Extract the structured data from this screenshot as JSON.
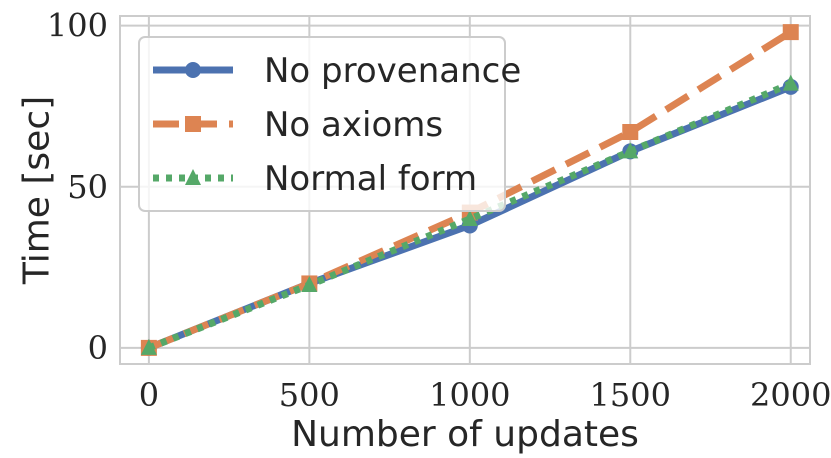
{
  "chart_data": {
    "type": "line",
    "title": "",
    "xlabel": "Number of updates",
    "ylabel": "Time [sec]",
    "x": [
      0,
      500,
      1000,
      1500,
      2000
    ],
    "xlim": [
      -90,
      2060
    ],
    "ylim": [
      -5,
      103
    ],
    "xticks": [
      0,
      500,
      1000,
      1500,
      2000
    ],
    "yticks": [
      0,
      50,
      100
    ],
    "x_tick_labels": [
      "0",
      "500",
      "1000",
      "1500",
      "2000"
    ],
    "y_tick_labels": [
      "0",
      "50",
      "100"
    ],
    "grid": true,
    "legend_position": "top-left",
    "series": [
      {
        "name": "No provenance",
        "values": [
          0,
          20,
          38,
          61,
          81
        ],
        "color": "#4c72b0",
        "style": "solid",
        "marker": "circle"
      },
      {
        "name": "No axioms",
        "values": [
          0,
          20,
          42,
          67,
          98
        ],
        "color": "#dd8452",
        "style": "dashed",
        "marker": "square"
      },
      {
        "name": "Normal form",
        "values": [
          0,
          19.5,
          40,
          61,
          82
        ],
        "color": "#55a868",
        "style": "dotted",
        "marker": "triangle"
      }
    ]
  }
}
